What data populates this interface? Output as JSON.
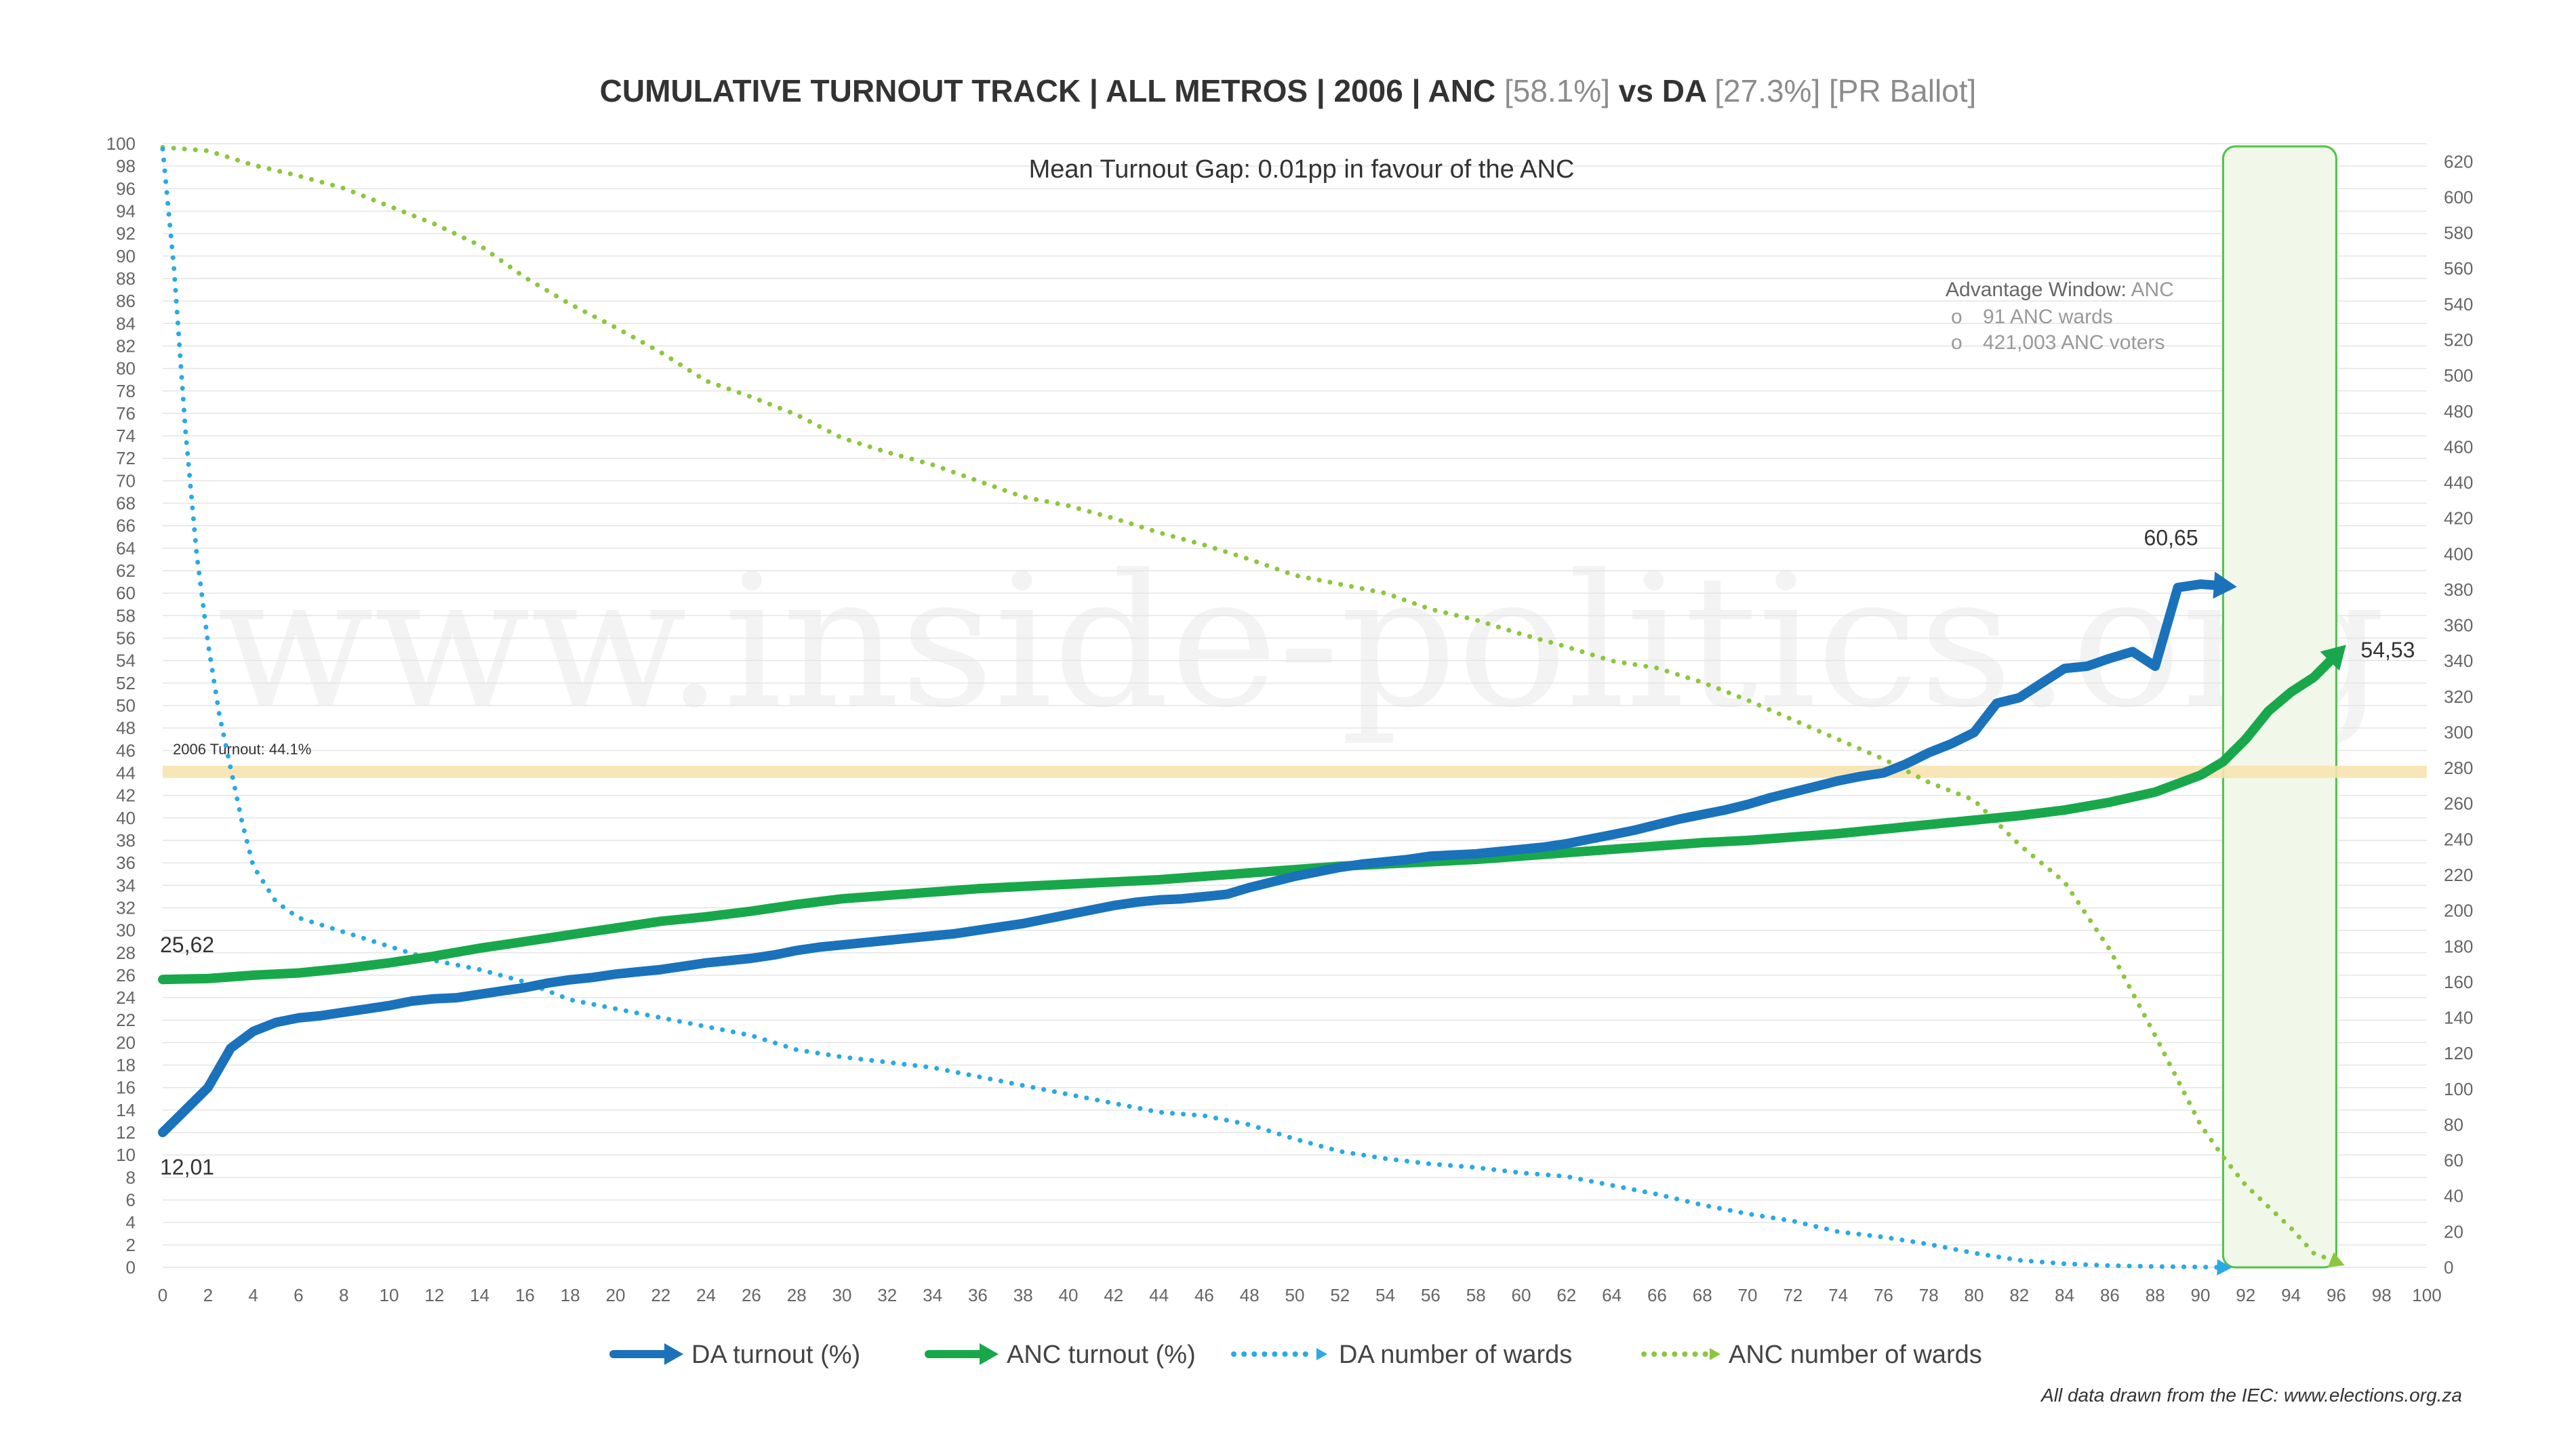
{
  "chart_data": {
    "type": "line",
    "title": {
      "main": "CUMULATIVE TURNOUT TRACK | ALL METROS | 2006 | ANC",
      "anc_share": "[58.1%]",
      "vs": "vs DA",
      "da_share": "[27.3%]",
      "ballot": "[PR Ballot]"
    },
    "subtitle": "Mean Turnout Gap: 0.01pp in favour of the ANC",
    "watermark": "www.inside-politics.org",
    "x_ticks": [
      0,
      2,
      4,
      6,
      8,
      10,
      12,
      14,
      16,
      18,
      20,
      22,
      24,
      26,
      28,
      30,
      32,
      34,
      36,
      38,
      40,
      42,
      44,
      46,
      48,
      50,
      52,
      54,
      56,
      58,
      60,
      62,
      64,
      66,
      68,
      70,
      72,
      74,
      76,
      78,
      80,
      82,
      84,
      86,
      88,
      90,
      92,
      94,
      96,
      98,
      100
    ],
    "xlim": [
      0,
      100
    ],
    "y_left_ticks": [
      0,
      2,
      4,
      6,
      8,
      10,
      12,
      14,
      16,
      18,
      20,
      22,
      24,
      26,
      28,
      30,
      32,
      34,
      36,
      38,
      40,
      42,
      44,
      46,
      48,
      50,
      52,
      54,
      56,
      58,
      60,
      62,
      64,
      66,
      68,
      70,
      72,
      74,
      76,
      78,
      80,
      82,
      84,
      86,
      88,
      90,
      92,
      94,
      96,
      98,
      100
    ],
    "ylim_left": [
      0,
      100
    ],
    "y_right_ticks": [
      0,
      20,
      40,
      60,
      80,
      100,
      120,
      140,
      160,
      180,
      200,
      220,
      240,
      260,
      280,
      300,
      320,
      340,
      360,
      380,
      400,
      420,
      440,
      460,
      480,
      500,
      520,
      540,
      560,
      580,
      600,
      620
    ],
    "ylim_right": [
      0,
      630
    ],
    "reference_line": {
      "y": 44.1,
      "label": "2006 Turnout: 44.1%",
      "color": "#f7e3b0"
    },
    "advantage_window": {
      "x_start": 91,
      "x_end": 96,
      "title": "Advantage Window:",
      "party": "ANC",
      "bullet": "o",
      "items": [
        "91 ANC wards",
        "421,003 ANC voters"
      ]
    },
    "series": [
      {
        "name": "DA turnout (%)",
        "axis": "left",
        "style": "solid",
        "color": "#1a72bb",
        "x": [
          0,
          1,
          2,
          3,
          4,
          5,
          6,
          7,
          8,
          9,
          10,
          11,
          12,
          13,
          14,
          15,
          16,
          17,
          18,
          19,
          20,
          21,
          22,
          23,
          24,
          25,
          26,
          27,
          28,
          29,
          30,
          31,
          32,
          33,
          34,
          35,
          36,
          37,
          38,
          39,
          40,
          41,
          42,
          43,
          44,
          45,
          46,
          47,
          48,
          49,
          50,
          51,
          52,
          53,
          54,
          55,
          56,
          57,
          58,
          59,
          60,
          61,
          62,
          63,
          64,
          65,
          66,
          67,
          68,
          69,
          70,
          71,
          72,
          73,
          74,
          75,
          76,
          77,
          78,
          79,
          80,
          81,
          82,
          83,
          84,
          85,
          86,
          87,
          88,
          89,
          90,
          91
        ],
        "values": [
          12.01,
          14,
          16,
          19.5,
          21,
          21.8,
          22.2,
          22.4,
          22.7,
          23,
          23.3,
          23.7,
          23.9,
          24,
          24.3,
          24.6,
          24.9,
          25.3,
          25.6,
          25.8,
          26.1,
          26.3,
          26.5,
          26.8,
          27.1,
          27.3,
          27.5,
          27.8,
          28.2,
          28.5,
          28.7,
          28.9,
          29.1,
          29.3,
          29.5,
          29.7,
          30,
          30.3,
          30.6,
          31,
          31.4,
          31.8,
          32.2,
          32.5,
          32.7,
          32.8,
          33,
          33.2,
          33.8,
          34.3,
          34.8,
          35.2,
          35.6,
          35.9,
          36.1,
          36.3,
          36.6,
          36.7,
          36.8,
          37,
          37.2,
          37.4,
          37.7,
          38.1,
          38.5,
          38.9,
          39.4,
          39.9,
          40.3,
          40.7,
          41.2,
          41.8,
          42.3,
          42.8,
          43.3,
          43.7,
          44,
          44.8,
          45.8,
          46.6,
          47.6,
          50.2,
          50.7,
          52,
          53.3,
          53.5,
          54.2,
          54.8,
          53.5,
          60.5,
          60.8,
          60.65
        ]
      },
      {
        "name": "ANC turnout (%)",
        "axis": "left",
        "style": "solid",
        "color": "#18a84b",
        "x": [
          0,
          2,
          4,
          6,
          8,
          10,
          12,
          14,
          16,
          18,
          20,
          22,
          24,
          26,
          28,
          30,
          32,
          34,
          36,
          38,
          40,
          42,
          44,
          46,
          48,
          50,
          52,
          54,
          56,
          58,
          60,
          62,
          64,
          66,
          68,
          70,
          72,
          74,
          76,
          78,
          80,
          82,
          84,
          86,
          88,
          90,
          91,
          92,
          93,
          94,
          95,
          96
        ],
        "values": [
          25.62,
          25.7,
          26,
          26.2,
          26.6,
          27.1,
          27.7,
          28.4,
          29,
          29.6,
          30.2,
          30.8,
          31.2,
          31.7,
          32.3,
          32.8,
          33.1,
          33.4,
          33.7,
          33.9,
          34.1,
          34.3,
          34.5,
          34.8,
          35.1,
          35.4,
          35.7,
          35.9,
          36.1,
          36.3,
          36.6,
          36.9,
          37.2,
          37.5,
          37.8,
          38,
          38.3,
          38.6,
          39,
          39.4,
          39.8,
          40.2,
          40.7,
          41.4,
          42.3,
          43.8,
          45,
          47,
          49.5,
          51.2,
          52.5,
          54.53
        ]
      },
      {
        "name": "DA number of wards",
        "axis": "right",
        "style": "dotted",
        "color": "#29a9e6",
        "x": [
          0,
          0.5,
          1,
          1.5,
          2,
          2.5,
          3,
          3.5,
          4,
          5,
          6,
          8,
          10,
          12,
          14,
          16,
          18,
          20,
          22,
          24,
          26,
          28,
          30,
          32,
          34,
          36,
          38,
          40,
          42,
          44,
          46,
          48,
          50,
          52,
          54,
          56,
          58,
          60,
          62,
          64,
          66,
          68,
          70,
          72,
          74,
          76,
          78,
          80,
          82,
          84,
          86,
          88,
          90,
          91
        ],
        "values": [
          627,
          560,
          470,
          400,
          350,
          310,
          280,
          250,
          225,
          205,
          196,
          188,
          180,
          172,
          167,
          160,
          150,
          145,
          140,
          135,
          130,
          122,
          118,
          115,
          112,
          107,
          102,
          97,
          92,
          87,
          85,
          80,
          72,
          65,
          61,
          58,
          56,
          53,
          51,
          46,
          41,
          35,
          30,
          26,
          20,
          17,
          13,
          8,
          4,
          2,
          1,
          0.5,
          0.2,
          0
        ]
      },
      {
        "name": "ANC number of wards",
        "axis": "right",
        "style": "dotted",
        "color": "#8cc63f",
        "x": [
          0,
          2,
          4,
          6,
          8,
          10,
          12,
          14,
          16,
          18,
          20,
          22,
          24,
          26,
          28,
          30,
          32,
          34,
          36,
          38,
          40,
          42,
          44,
          46,
          48,
          50,
          52,
          54,
          56,
          58,
          60,
          62,
          64,
          66,
          68,
          70,
          72,
          74,
          76,
          78,
          80,
          82,
          84,
          86,
          88,
          90,
          91,
          92,
          93,
          94,
          95,
          96
        ],
        "values": [
          628,
          626,
          618,
          612,
          605,
          595,
          585,
          573,
          555,
          540,
          527,
          513,
          497,
          488,
          478,
          465,
          457,
          450,
          441,
          432,
          427,
          420,
          412,
          405,
          397,
          388,
          383,
          378,
          369,
          363,
          355,
          348,
          340,
          336,
          328,
          318,
          307,
          296,
          285,
          272,
          262,
          237,
          216,
          178,
          130,
          80,
          62,
          46,
          34,
          22,
          8,
          3
        ]
      }
    ],
    "data_labels": {
      "da_start": "12,01",
      "da_end": "60,65",
      "anc_start": "25,62",
      "anc_end": "54,53"
    },
    "legend": [
      "DA turnout (%)",
      "ANC turnout (%)",
      "DA number of wards",
      "ANC number of wards"
    ],
    "source": "All data drawn from the IEC: www.elections.org.za"
  }
}
